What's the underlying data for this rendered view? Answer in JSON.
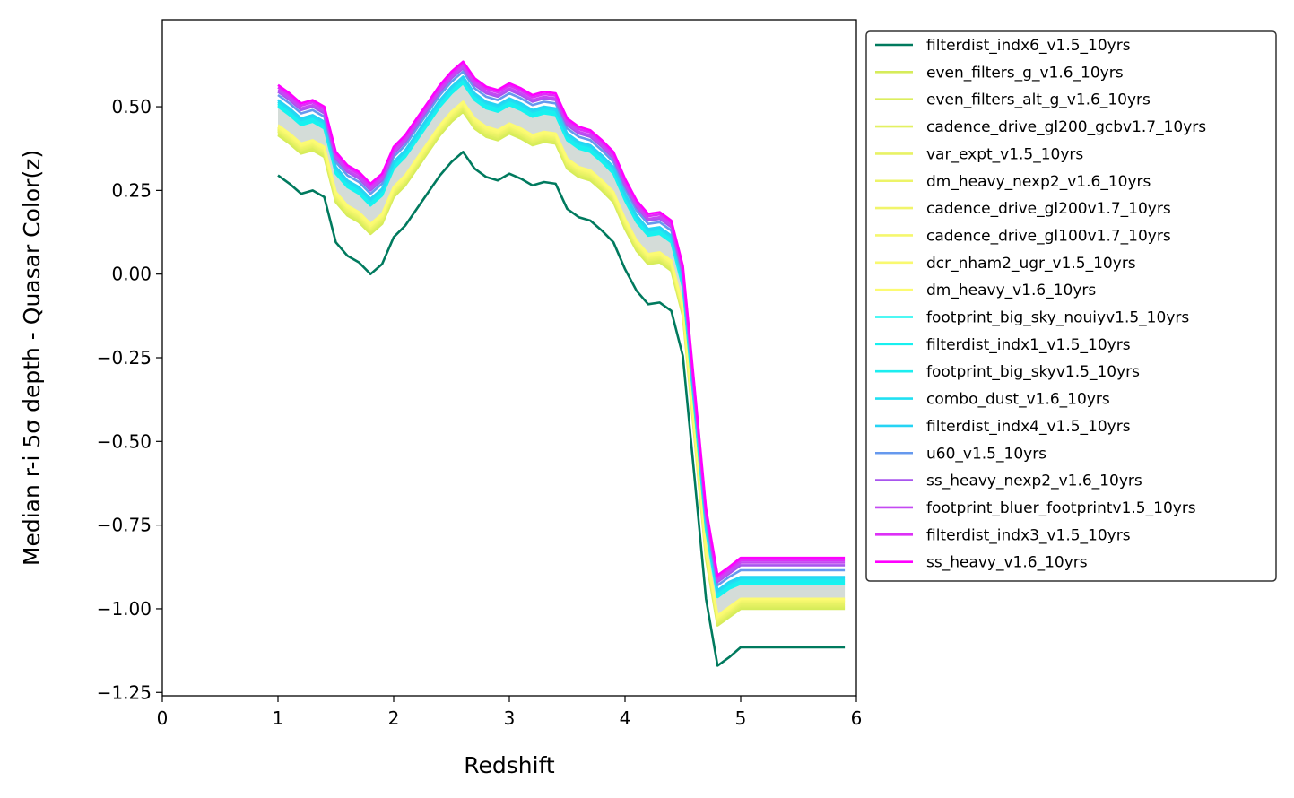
{
  "chart_data": {
    "type": "line",
    "title": "",
    "xlabel": "Redshift",
    "ylabel": "Median r-i 5σ depth - Quasar Color(z)",
    "xlim": [
      0,
      6
    ],
    "ylim": [
      -1.26,
      0.76
    ],
    "xticks": [
      0,
      1,
      2,
      3,
      4,
      5,
      6
    ],
    "yticks": [
      -1.25,
      -1.0,
      -0.75,
      -0.5,
      -0.25,
      0.0,
      0.25,
      0.5
    ],
    "ytick_labels": [
      "−1.25",
      "−1.00",
      "−0.75",
      "−0.50",
      "−0.25",
      "0.00",
      "0.25",
      "0.50"
    ],
    "grid": false,
    "legend_position": "outside-right",
    "x": [
      1.0,
      1.1,
      1.2,
      1.3,
      1.4,
      1.5,
      1.6,
      1.7,
      1.8,
      1.9,
      2.0,
      2.1,
      2.2,
      2.3,
      2.4,
      2.5,
      2.6,
      2.7,
      2.8,
      2.9,
      3.0,
      3.1,
      3.2,
      3.3,
      3.4,
      3.5,
      3.6,
      3.7,
      3.8,
      3.9,
      4.0,
      4.1,
      4.2,
      4.3,
      4.4,
      4.5,
      4.6,
      4.7,
      4.8,
      4.9,
      5.0,
      5.1,
      5.2,
      5.3,
      5.4,
      5.5,
      5.6,
      5.7,
      5.8,
      5.9
    ],
    "base_curve": [
      0.0,
      -0.025,
      -0.055,
      -0.045,
      -0.065,
      -0.2,
      -0.24,
      -0.26,
      -0.295,
      -0.265,
      -0.185,
      -0.15,
      -0.1,
      -0.05,
      0.0,
      0.04,
      0.07,
      0.02,
      -0.005,
      -0.015,
      0.005,
      -0.01,
      -0.03,
      -0.02,
      -0.025,
      -0.1,
      -0.125,
      -0.135,
      -0.165,
      -0.2,
      -0.28,
      -0.345,
      -0.385,
      -0.38,
      -0.405,
      -0.54,
      -0.9,
      -1.265,
      -1.465,
      -1.44,
      -1.415,
      -1.415,
      -1.415,
      -1.415,
      -1.415,
      -1.415,
      -1.415,
      -1.415,
      -1.415,
      -1.415
    ],
    "series": [
      {
        "name": "filterdist_indx6_v1.5_10yrs",
        "color": "#007a5e",
        "offset": 0.295,
        "flat_end": -1.115
      },
      {
        "name": "even_filters_g_v1.6_10yrs",
        "color": "#d6ec5a",
        "offset": 0.415,
        "flat_end": -1.0
      },
      {
        "name": "even_filters_alt_g_v1.6_10yrs",
        "color": "#dcee5d",
        "offset": 0.42,
        "flat_end": -0.995
      },
      {
        "name": "cadence_drive_gl200_gcbv1.7_10yrs",
        "color": "#e3f062",
        "offset": 0.425,
        "flat_end": -0.99
      },
      {
        "name": "var_expt_v1.5_10yrs",
        "color": "#e8f265",
        "offset": 0.428,
        "flat_end": -0.985
      },
      {
        "name": "dm_heavy_nexp2_v1.6_10yrs",
        "color": "#edf468",
        "offset": 0.432,
        "flat_end": -0.98
      },
      {
        "name": "cadence_drive_gl200v1.7_10yrs",
        "color": "#f1f56b",
        "offset": 0.435,
        "flat_end": -0.978
      },
      {
        "name": "cadence_drive_gl100v1.7_10yrs",
        "color": "#f5f76e",
        "offset": 0.438,
        "flat_end": -0.975
      },
      {
        "name": "dcr_nham2_ugr_v1.5_10yrs",
        "color": "#f9f970",
        "offset": 0.44,
        "flat_end": -0.972
      },
      {
        "name": "dm_heavy_v1.6_10yrs",
        "color": "#fcfb72",
        "offset": 0.445,
        "flat_end": -0.97
      },
      {
        "name": "footprint_big_sky_nouiyv1.5_10yrs",
        "color": "#14f5f0",
        "offset": 0.5,
        "flat_end": -0.925
      },
      {
        "name": "filterdist_indx1_v1.5_10yrs",
        "color": "#18f0f0",
        "offset": 0.505,
        "flat_end": -0.92
      },
      {
        "name": "footprint_big_skyv1.5_10yrs",
        "color": "#1ceef0",
        "offset": 0.51,
        "flat_end": -0.915
      },
      {
        "name": "combo_dust_v1.6_10yrs",
        "color": "#20e0f2",
        "offset": 0.515,
        "flat_end": -0.91
      },
      {
        "name": "filterdist_indx4_v1.5_10yrs",
        "color": "#26d4f4",
        "offset": 0.52,
        "flat_end": -0.905
      },
      {
        "name": "u60_v1.5_10yrs",
        "color": "#6699ee",
        "offset": 0.535,
        "flat_end": -0.885
      },
      {
        "name": "ss_heavy_nexp2_v1.6_10yrs",
        "color": "#a855ee",
        "offset": 0.545,
        "flat_end": -0.87
      },
      {
        "name": "footprint_bluer_footprintv1.5_10yrs",
        "color": "#c44af2",
        "offset": 0.55,
        "flat_end": -0.862
      },
      {
        "name": "filterdist_indx3_v1.5_10yrs",
        "color": "#dd30f6",
        "offset": 0.558,
        "flat_end": -0.855
      },
      {
        "name": "ss_heavy_v1.6_10yrs",
        "color": "#ff00ff",
        "offset": 0.565,
        "flat_end": -0.848
      }
    ],
    "band": {
      "color": "#d4dcd8",
      "lower_series": 9,
      "upper_series": 10
    }
  }
}
